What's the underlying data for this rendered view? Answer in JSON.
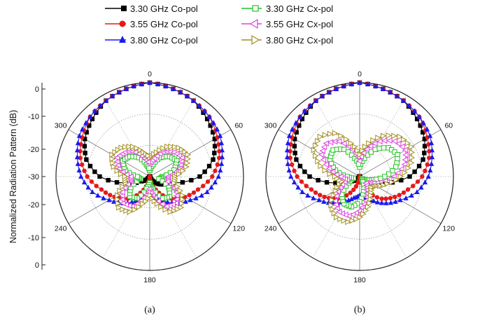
{
  "legend": [
    {
      "label": "3.30 GHz Co-pol",
      "color": "#000000",
      "marker": "square-filled"
    },
    {
      "label": "3.30 GHz Cx-pol",
      "color": "#22c422",
      "marker": "square-open"
    },
    {
      "label": "3.55 GHz Co-pol",
      "color": "#e41a1a",
      "marker": "circle-filled"
    },
    {
      "label": "3.55 GHz Cx-pol",
      "color": "#e040e0",
      "marker": "triangle-left-open"
    },
    {
      "label": "3.80 GHz Co-pol",
      "color": "#1a1aee",
      "marker": "triangle-up-filled"
    },
    {
      "label": "3.80 GHz Cx-pol",
      "color": "#a09020",
      "marker": "triangle-right-open"
    }
  ],
  "ylabel": "Normalized Radiation Pattern (dB)",
  "y_ticks": [
    "0",
    "-10",
    "-20",
    "-30",
    "-20",
    "-10",
    "0"
  ],
  "chart_data": [
    {
      "type": "line",
      "polar": true,
      "caption": "(a)",
      "angle_ticks": [
        "0",
        "60",
        "120",
        "180",
        "240",
        "300"
      ],
      "radial_range_db": [
        -30,
        0
      ],
      "theta_deg": [
        0,
        15,
        30,
        45,
        60,
        75,
        90,
        105,
        120,
        135,
        150,
        165,
        180,
        195,
        210,
        225,
        240,
        255,
        270,
        285,
        300,
        315,
        330,
        345
      ],
      "series": [
        {
          "name": "3.30 GHz Co-pol",
          "values": [
            0,
            -1,
            -2,
            -4,
            -6,
            -9,
            -14,
            -22,
            -25,
            -27,
            -29,
            -30,
            -30,
            -30,
            -30,
            -29,
            -27,
            -22,
            -14,
            -9,
            -6,
            -4,
            -2,
            -1
          ]
        },
        {
          "name": "3.55 GHz Co-pol",
          "values": [
            0,
            -1,
            -2,
            -3,
            -5,
            -7,
            -10,
            -14,
            -17,
            -20,
            -24,
            -28,
            -30,
            -28,
            -24,
            -20,
            -17,
            -14,
            -10,
            -7,
            -5,
            -3,
            -2,
            -1
          ]
        },
        {
          "name": "3.80 GHz Co-pol",
          "values": [
            0,
            -1,
            -2,
            -3,
            -4,
            -6,
            -8,
            -11,
            -15,
            -18,
            -21,
            -23,
            -24,
            -23,
            -21,
            -18,
            -15,
            -11,
            -8,
            -6,
            -4,
            -3,
            -2,
            -1
          ]
        },
        {
          "name": "3.30 GHz Cx-pol",
          "values": [
            -28,
            -26,
            -23,
            -21,
            -20,
            -22,
            -26,
            -27,
            -23,
            -21,
            -22,
            -26,
            -28,
            -26,
            -22,
            -21,
            -23,
            -27,
            -26,
            -22,
            -20,
            -21,
            -23,
            -26
          ]
        },
        {
          "name": "3.55 GHz Cx-pol",
          "values": [
            -26,
            -24,
            -21,
            -19,
            -18,
            -20,
            -24,
            -24,
            -20,
            -18,
            -19,
            -23,
            -26,
            -23,
            -19,
            -18,
            -20,
            -24,
            -24,
            -20,
            -18,
            -19,
            -21,
            -24
          ]
        },
        {
          "name": "3.80 GHz Cx-pol",
          "values": [
            -24,
            -22,
            -19,
            -17,
            -16,
            -18,
            -22,
            -22,
            -18,
            -16,
            -17,
            -21,
            -24,
            -21,
            -17,
            -16,
            -18,
            -22,
            -22,
            -18,
            -16,
            -17,
            -19,
            -22
          ]
        }
      ]
    },
    {
      "type": "line",
      "polar": true,
      "caption": "(b)",
      "angle_ticks": [
        "0",
        "60",
        "120",
        "180",
        "240",
        "300"
      ],
      "radial_range_db": [
        -30,
        0
      ],
      "theta_deg": [
        0,
        15,
        30,
        45,
        60,
        75,
        90,
        105,
        120,
        135,
        150,
        165,
        180,
        195,
        210,
        225,
        240,
        255,
        270,
        285,
        300,
        315,
        330,
        345
      ],
      "series": [
        {
          "name": "3.30 GHz Co-pol",
          "values": [
            0,
            -1,
            -2,
            -4,
            -6,
            -9,
            -14,
            -22,
            -25,
            -27,
            -29,
            -30,
            -30,
            -30,
            -30,
            -29,
            -27,
            -22,
            -14,
            -9,
            -6,
            -4,
            -2,
            -1
          ]
        },
        {
          "name": "3.55 GHz Co-pol",
          "values": [
            0,
            -1,
            -2,
            -3,
            -5,
            -7,
            -10,
            -14,
            -17,
            -20,
            -24,
            -28,
            -30,
            -28,
            -24,
            -20,
            -17,
            -14,
            -10,
            -7,
            -5,
            -3,
            -2,
            -1
          ]
        },
        {
          "name": "3.80 GHz Co-pol",
          "values": [
            0,
            -1,
            -2,
            -3,
            -4,
            -6,
            -8,
            -11,
            -15,
            -18,
            -21,
            -23,
            -24,
            -23,
            -21,
            -18,
            -15,
            -11,
            -8,
            -6,
            -4,
            -3,
            -2,
            -1
          ]
        },
        {
          "name": "3.30 GHz Cx-pol",
          "values": [
            -27,
            -24,
            -20,
            -17,
            -16,
            -18,
            -22,
            -26,
            -28,
            -29,
            -28,
            -25,
            -22,
            -20,
            -20,
            -22,
            -26,
            -28,
            -26,
            -22,
            -19,
            -18,
            -20,
            -24
          ]
        },
        {
          "name": "3.55 GHz Cx-pol",
          "values": [
            -25,
            -21,
            -17,
            -14,
            -13,
            -15,
            -19,
            -23,
            -26,
            -27,
            -25,
            -22,
            -19,
            -17,
            -17,
            -19,
            -23,
            -26,
            -24,
            -20,
            -16,
            -15,
            -17,
            -21
          ]
        },
        {
          "name": "3.80 GHz Cx-pol",
          "values": [
            -23,
            -19,
            -15,
            -12,
            -11,
            -13,
            -17,
            -21,
            -24,
            -25,
            -23,
            -20,
            -17,
            -15,
            -15,
            -17,
            -21,
            -24,
            -22,
            -17,
            -13,
            -12,
            -14,
            -19
          ]
        }
      ]
    }
  ]
}
